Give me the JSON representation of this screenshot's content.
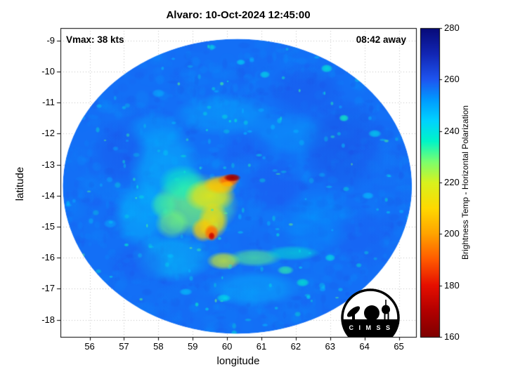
{
  "chart_data": {
    "type": "heatmap",
    "title": "Alvaro: 10-Oct-2024 12:45:00",
    "xlabel": "longitude",
    "ylabel": "latitude",
    "xlim": [
      55.15,
      65.5
    ],
    "ylim": [
      -18.55,
      -8.6
    ],
    "xticks": [
      56,
      57,
      58,
      59,
      60,
      61,
      62,
      63,
      64,
      65
    ],
    "yticks": [
      -9,
      -10,
      -11,
      -12,
      -13,
      -14,
      -15,
      -16,
      -17,
      -18
    ],
    "grid": true,
    "annotations": [
      {
        "text": "Vmax: 38 kts",
        "position": "top-left"
      },
      {
        "text": "08:42 away",
        "position": "top-right"
      }
    ],
    "colorbar": {
      "label": "Brightness Temp - Horizontal Polarization",
      "min": 160,
      "max": 280,
      "ticks": [
        160,
        180,
        200,
        220,
        240,
        260,
        280
      ],
      "colormap_stops": [
        {
          "v": 160,
          "c": "#7f0000"
        },
        {
          "v": 170,
          "c": "#b20000"
        },
        {
          "v": 180,
          "c": "#e60f00"
        },
        {
          "v": 190,
          "c": "#ff5a00"
        },
        {
          "v": 200,
          "c": "#ffa300"
        },
        {
          "v": 210,
          "c": "#ffd900"
        },
        {
          "v": 220,
          "c": "#d8f21e"
        },
        {
          "v": 228,
          "c": "#7bff6e"
        },
        {
          "v": 236,
          "c": "#00f5c8"
        },
        {
          "v": 244,
          "c": "#00d2ff"
        },
        {
          "v": 252,
          "c": "#009bff"
        },
        {
          "v": 260,
          "c": "#1e55f0"
        },
        {
          "v": 270,
          "c": "#1226b4"
        },
        {
          "v": 280,
          "c": "#070a78"
        }
      ]
    },
    "swath": {
      "center": [
        60.3,
        -13.7
      ],
      "radius_deg": [
        5.08,
        4.75
      ],
      "base_temp": 257
    },
    "cool_patches": [
      [
        58.2,
        -13.2,
        1.1,
        1.5,
        244,
        0.45
      ],
      [
        57.5,
        -14.6,
        0.85,
        1.1,
        245,
        0.5
      ],
      [
        58.4,
        -16.0,
        1.2,
        0.8,
        243,
        0.45
      ],
      [
        59.9,
        -11.4,
        1.5,
        0.7,
        247,
        0.4
      ],
      [
        61.8,
        -12.0,
        1.3,
        0.7,
        249,
        0.35
      ],
      [
        62.6,
        -14.8,
        1.1,
        1.1,
        252,
        0.35
      ],
      [
        60.8,
        -17.0,
        1.4,
        0.6,
        245,
        0.4
      ],
      [
        57.9,
        -11.9,
        0.9,
        0.6,
        248,
        0.35
      ],
      [
        63.4,
        -12.4,
        1.3,
        1.5,
        262,
        0.5
      ],
      [
        62.3,
        -10.6,
        1.1,
        0.9,
        261,
        0.45
      ],
      [
        56.9,
        -12.6,
        0.8,
        1.1,
        261,
        0.4
      ],
      [
        61.4,
        -13.7,
        0.9,
        0.9,
        260,
        0.5
      ],
      [
        60.6,
        -12.5,
        0.9,
        0.55,
        259,
        0.5
      ],
      [
        57.4,
        -16.2,
        0.9,
        0.7,
        260,
        0.35
      ],
      [
        63.9,
        -15.4,
        1.0,
        1.0,
        260,
        0.35
      ],
      [
        64.5,
        -13.0,
        0.8,
        1.0,
        258,
        0.4
      ]
    ],
    "warm_features": [
      [
        59.1,
        -14.3,
        1.25,
        1.05,
        228,
        0.75
      ],
      [
        58.7,
        -13.6,
        0.7,
        0.6,
        235,
        0.6
      ],
      [
        59.5,
        -14.0,
        0.75,
        0.55,
        215,
        0.85
      ],
      [
        59.8,
        -13.65,
        0.5,
        0.32,
        206,
        0.9
      ],
      [
        59.6,
        -14.8,
        0.45,
        0.6,
        212,
        0.85
      ],
      [
        59.3,
        -15.1,
        0.35,
        0.4,
        207,
        0.85
      ],
      [
        60.05,
        -13.5,
        0.33,
        0.2,
        192,
        0.95
      ],
      [
        60.15,
        -13.42,
        0.26,
        0.13,
        166,
        1
      ],
      [
        60.0,
        -13.63,
        0.2,
        0.1,
        203,
        0.9
      ],
      [
        59.55,
        -15.2,
        0.22,
        0.28,
        192,
        0.95
      ],
      [
        59.55,
        -15.3,
        0.1,
        0.13,
        175,
        1
      ],
      [
        59.9,
        -16.1,
        0.5,
        0.3,
        220,
        0.75
      ],
      [
        60.8,
        -16.0,
        0.8,
        0.3,
        230,
        0.6
      ],
      [
        61.9,
        -15.85,
        0.8,
        0.25,
        236,
        0.5
      ],
      [
        58.4,
        -14.9,
        0.5,
        0.5,
        228,
        0.6
      ],
      [
        58.15,
        -14.3,
        0.4,
        0.45,
        232,
        0.55
      ]
    ],
    "speckles": [
      [
        62.9,
        -9.9,
        0.18,
        0.14,
        238,
        0.8
      ],
      [
        63.4,
        -11.5,
        0.15,
        0.12,
        235,
        0.8
      ],
      [
        64.3,
        -12.0,
        0.2,
        0.13,
        241,
        0.7
      ],
      [
        61.1,
        -10.1,
        0.16,
        0.12,
        240,
        0.7
      ],
      [
        60.4,
        -9.7,
        0.14,
        0.1,
        242,
        0.7
      ],
      [
        62.2,
        -16.8,
        0.2,
        0.14,
        236,
        0.7
      ],
      [
        63.0,
        -16.0,
        0.16,
        0.12,
        239,
        0.7
      ],
      [
        59.9,
        -17.3,
        0.22,
        0.13,
        240,
        0.7
      ],
      [
        58.8,
        -17.1,
        0.2,
        0.12,
        243,
        0.6
      ],
      [
        61.7,
        -16.4,
        0.25,
        0.15,
        233,
        0.7
      ],
      [
        64.1,
        -14.0,
        0.18,
        0.12,
        244,
        0.6
      ],
      [
        58.0,
        -10.7,
        0.2,
        0.14,
        246,
        0.5
      ],
      [
        56.6,
        -14.9,
        0.2,
        0.15,
        247,
        0.5
      ]
    ],
    "texture": {
      "seed": 11,
      "clumps": 260,
      "base": 1200,
      "mid": 120,
      "bright": 55
    }
  },
  "logo": {
    "text": "C I M S S"
  }
}
